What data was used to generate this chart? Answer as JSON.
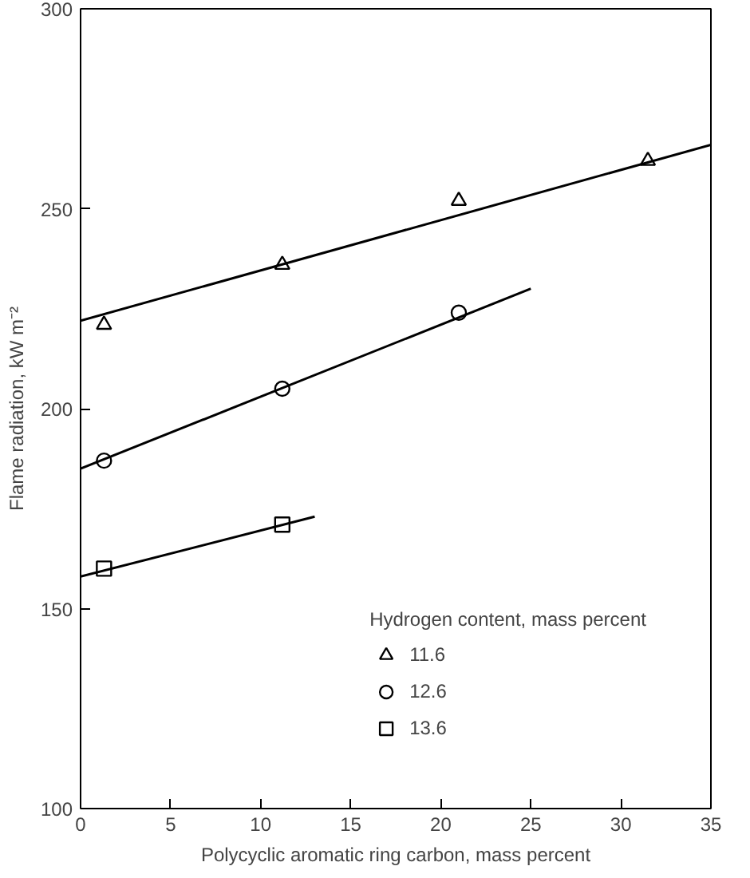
{
  "chart_data": {
    "type": "scatter",
    "xlabel": "Polycyclic aromatic ring carbon, mass percent",
    "ylabel": "Flame radiation, kW m⁻²",
    "legend_title": "Hydrogen content, mass percent",
    "legend": "bottom right",
    "grid": false,
    "xlim": [
      0,
      35
    ],
    "ylim": [
      100,
      300
    ],
    "xticks": [
      0,
      5,
      10,
      15,
      20,
      25,
      30,
      35
    ],
    "yticks": [
      100,
      150,
      200,
      250,
      300
    ],
    "series": [
      {
        "name": "11.6",
        "color": "#000000",
        "marker": "triangle",
        "x": [
          1.3,
          11.2,
          21,
          31.5
        ],
        "values": [
          221,
          236,
          252,
          262
        ]
      },
      {
        "name": "12.6",
        "color": "#000000",
        "marker": "circle",
        "x": [
          1.3,
          11.2,
          21
        ],
        "values": [
          187,
          205,
          224
        ]
      },
      {
        "name": "13.6",
        "color": "#000000",
        "marker": "square",
        "x": [
          1.3,
          11.2
        ],
        "values": [
          160,
          171
        ]
      },
      {
        "type": "line",
        "color": "#000000",
        "x": [
          0,
          35
        ],
        "values": [
          222,
          266
        ]
      },
      {
        "type": "line",
        "color": "#000000",
        "x": [
          0,
          25
        ],
        "values": [
          185,
          230
        ]
      },
      {
        "type": "line",
        "color": "#000000",
        "x": [
          0,
          13
        ],
        "values": [
          158,
          173
        ]
      }
    ]
  }
}
